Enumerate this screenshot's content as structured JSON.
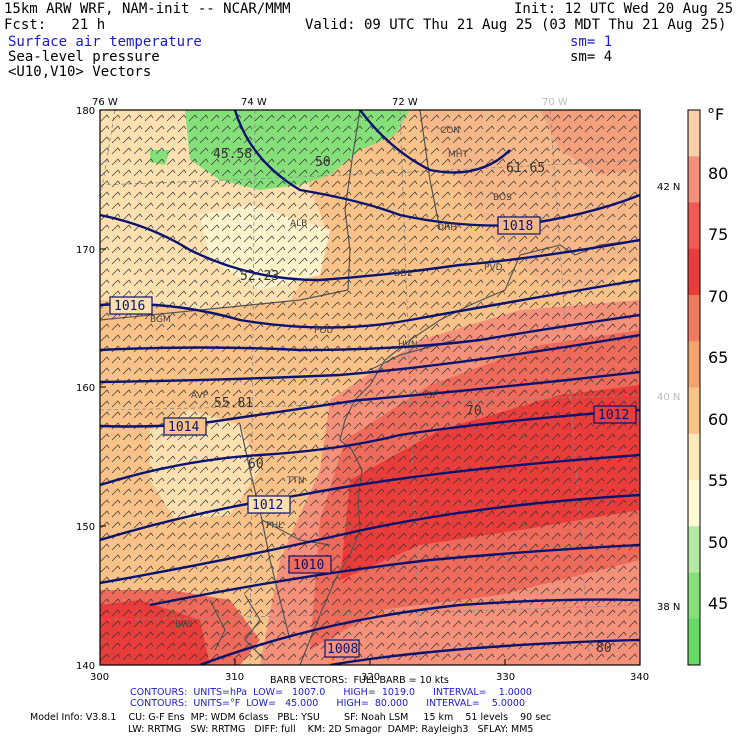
{
  "header": {
    "model": "15km ARW WRF, NAM-init -- NCAR/MMM",
    "init": "Init: 12 UTC Wed 20 Aug 25",
    "fcst": "Fcst:   21 h",
    "valid": "Valid: 09 UTC Thu 21 Aug 25 (03 MDT Thu 21 Aug 25)",
    "field1": "Surface air temperature",
    "field2": "Sea-level pressure",
    "field3": "<U10,V10> Vectors",
    "sm1": "sm= 1",
    "sm2": "sm= 4"
  },
  "axes": {
    "lon_top": [
      "76 W",
      "74 W",
      "72 W",
      "70 W"
    ],
    "lat_right": [
      "42 N",
      "40 N",
      "38 N"
    ],
    "y_left": [
      "180",
      "170",
      "160",
      "150",
      "140"
    ],
    "x_bottom": [
      "300",
      "310",
      "320",
      "330",
      "340"
    ]
  },
  "colorbar": {
    "unit": "°F",
    "labels": [
      "80",
      "75",
      "70",
      "65",
      "60",
      "55",
      "50",
      "45"
    ],
    "colors": [
      "#fbcfa8",
      "#f5907a",
      "#ee5a52",
      "#e83d3a",
      "#f07a5e",
      "#f4a36c",
      "#f8c288",
      "#fde8b8",
      "#fffad8",
      "#b6eaa2",
      "#86e07a",
      "#66d966"
    ]
  },
  "isobar_labels": [
    "1018",
    "1016",
    "1014",
    "1012",
    "1012",
    "1010",
    "1008"
  ],
  "temp_labels": [
    "45.58",
    "50",
    "52.23",
    "55.81",
    "60",
    "61.65",
    "70",
    "80"
  ],
  "stations": [
    "CON",
    "MHT",
    "BOS",
    "ALB",
    "ORH",
    "BDL",
    "PVD",
    "BGM",
    "POU",
    "HVN",
    "AVP",
    "ISP",
    "TTN",
    "PHL",
    "BWI"
  ],
  "footer": {
    "barb": "BARB VECTORS:  FULL BARB = 10 kts",
    "contours1": "CONTOURS:  UNITS=hPa  LOW=   1007.0      HIGH=  1019.0      INTERVAL=    1.0000",
    "contours2": "CONTOURS:  UNITS=°F  LOW=   45.000      HIGH=  80.000      INTERVAL=    5.0000",
    "model_info": "Model Info: V3.8.1    CU: G-F Ens  MP: WDM 6class   PBL: YSU        SF: Noah LSM     15 km    51 levels    90 sec",
    "model_info2": "LW: RRTMG   SW: RRTMG   DIFF: full    KM: 2D Smagor  DAMP: Rayleigh3   SFLAY: MM5"
  }
}
